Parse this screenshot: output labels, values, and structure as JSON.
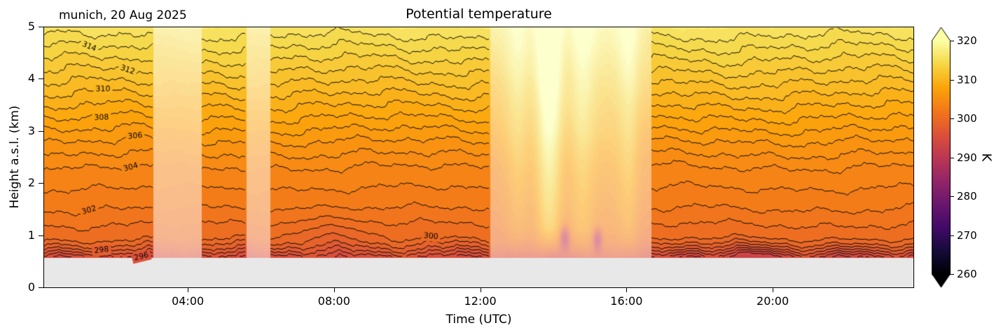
{
  "figure": {
    "title": "Potential temperature",
    "site_label": "munich, 20 Aug 2025",
    "xlabel": "Time (UTC)",
    "ylabel": "Height a.s.l. (km)",
    "colorbar": {
      "label": "K",
      "vmin": 260,
      "vmax": 320,
      "extend": "both",
      "ticks": [
        {
          "value": 260,
          "label": "260"
        },
        {
          "value": 270,
          "label": "270"
        },
        {
          "value": 280,
          "label": "280"
        },
        {
          "value": 290,
          "label": "290"
        },
        {
          "value": 300,
          "label": "300"
        },
        {
          "value": 310,
          "label": "310"
        },
        {
          "value": 320,
          "label": "320"
        }
      ]
    }
  },
  "chart_data": {
    "type": "filled-contour",
    "title": "Potential temperature",
    "site_label": "munich, 20 Aug 2025",
    "x": {
      "label": "Time (UTC)",
      "range": [
        0.05,
        23.85
      ],
      "ticks": [
        {
          "value": 4,
          "label": "04:00"
        },
        {
          "value": 8,
          "label": "08:00"
        },
        {
          "value": 12,
          "label": "12:00"
        },
        {
          "value": 16,
          "label": "16:00"
        },
        {
          "value": 20,
          "label": "20:00"
        }
      ]
    },
    "y": {
      "label": "Height a.s.l. (km)",
      "range": [
        0,
        5
      ],
      "ticks": [
        {
          "value": 0,
          "label": "0"
        },
        {
          "value": 1,
          "label": "1"
        },
        {
          "value": 2,
          "label": "2"
        },
        {
          "value": 3,
          "label": "3"
        },
        {
          "value": 4,
          "label": "4"
        },
        {
          "value": 5,
          "label": "5"
        }
      ]
    },
    "z": {
      "label": "K",
      "colorbar_range": [
        260,
        320
      ],
      "colormap": "inferno",
      "colormap_anchors": [
        [
          0.0,
          "#000004"
        ],
        [
          0.1,
          "#160b39"
        ],
        [
          0.2,
          "#420a68"
        ],
        [
          0.3,
          "#6a176e"
        ],
        [
          0.4,
          "#932667"
        ],
        [
          0.5,
          "#bc3754"
        ],
        [
          0.6,
          "#dd513a"
        ],
        [
          0.7,
          "#f37819"
        ],
        [
          0.8,
          "#fca50a"
        ],
        [
          0.9,
          "#f6d746"
        ],
        [
          1.0,
          "#fcffa4"
        ]
      ]
    },
    "contour_line_levels": [
      294,
      295,
      296,
      297,
      298,
      299,
      300,
      301,
      302,
      303,
      304,
      305,
      306,
      307,
      308,
      309,
      310,
      311,
      312,
      313,
      314,
      315
    ],
    "contour_label_levels": [
      296,
      298,
      300,
      302,
      304,
      306,
      308,
      310,
      312,
      314
    ],
    "contour_labels": [
      {
        "level": 314,
        "t": 1.3
      },
      {
        "level": 312,
        "t": 2.35
      },
      {
        "level": 310,
        "t": 1.68
      },
      {
        "level": 308,
        "t": 1.64
      },
      {
        "level": 306,
        "t": 2.56
      },
      {
        "level": 304,
        "t": 2.44
      },
      {
        "level": 302,
        "t": 1.3
      },
      {
        "level": 300,
        "t": 10.65
      },
      {
        "level": 298,
        "t": 1.64
      },
      {
        "level": 296,
        "t": 2.73
      }
    ],
    "mean_profile": {
      "height_km": [
        0.55,
        0.72,
        0.9,
        1.5,
        2.3,
        2.8,
        3.25,
        3.7,
        4.15,
        4.6,
        5.0
      ],
      "theta_K": [
        295.4,
        298,
        300,
        302,
        304,
        306,
        308,
        310,
        312,
        314,
        315.8
      ]
    },
    "low_quality_windows_utc": [
      [
        3.04,
        4.38
      ],
      [
        5.6,
        6.25
      ],
      [
        12.26,
        16.67
      ]
    ],
    "surface_level_km": 0.57,
    "ground_color": "#e8e8e8"
  }
}
